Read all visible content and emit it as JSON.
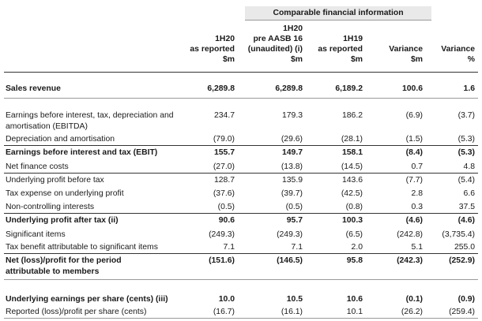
{
  "group_header": "Comparable financial information",
  "columns": [
    {
      "lines": [
        "1H20",
        "as reported",
        "$m"
      ]
    },
    {
      "lines": [
        "1H20",
        "pre AASB 16",
        "(unaudited) (i)",
        "$m"
      ]
    },
    {
      "lines": [
        "1H19",
        "as reported",
        "$m"
      ]
    },
    {
      "lines": [
        "Variance",
        "$m"
      ]
    },
    {
      "lines": [
        "Variance",
        "%"
      ]
    }
  ],
  "rows": [
    {
      "label": "Sales revenue",
      "values": [
        "6,289.8",
        "6,289.8",
        "6,189.2",
        "100.6",
        "1.6"
      ]
    },
    {
      "label": "Earnings before interest, tax, depreciation and",
      "label2": "amortisation (EBITDA)",
      "values": [
        "234.7",
        "179.3",
        "186.2",
        "(6.9)",
        "(3.7)"
      ]
    },
    {
      "label": "Depreciation and amortisation",
      "values": [
        "(79.0)",
        "(29.6)",
        "(28.1)",
        "(1.5)",
        "(5.3)"
      ]
    },
    {
      "label": "Earnings before interest and tax (EBIT)",
      "values": [
        "155.7",
        "149.7",
        "158.1",
        "(8.4)",
        "(5.3)"
      ]
    },
    {
      "label": "Net finance costs",
      "values": [
        "(27.0)",
        "(13.8)",
        "(14.5)",
        "0.7",
        "4.8"
      ]
    },
    {
      "label": "Underlying profit before tax",
      "values": [
        "128.7",
        "135.9",
        "143.6",
        "(7.7)",
        "(5.4)"
      ]
    },
    {
      "label": "Tax expense on underlying profit",
      "values": [
        "(37.6)",
        "(39.7)",
        "(42.5)",
        "2.8",
        "6.6"
      ]
    },
    {
      "label": "Non-controlling interests",
      "values": [
        "(0.5)",
        "(0.5)",
        "(0.8)",
        "0.3",
        "37.5"
      ]
    },
    {
      "label": "Underlying profit after tax (ii)",
      "values": [
        "90.6",
        "95.7",
        "100.3",
        "(4.6)",
        "(4.6)"
      ]
    },
    {
      "label": "Significant items",
      "values": [
        "(249.3)",
        "(249.3)",
        "(6.5)",
        "(242.8)",
        "(3,735.4)"
      ]
    },
    {
      "label": "Tax benefit attributable to significant items",
      "values": [
        "7.1",
        "7.1",
        "2.0",
        "5.1",
        "255.0"
      ]
    },
    {
      "label": "Net (loss)/profit for the period",
      "label2": "attributable to members",
      "values": [
        "(151.6)",
        "(146.5)",
        "95.8",
        "(242.3)",
        "(252.9)"
      ]
    },
    {
      "label": "Underlying earnings per share (cents) (iii)",
      "values": [
        "10.0",
        "10.5",
        "10.6",
        "(0.1)",
        "(0.9)"
      ]
    },
    {
      "label": "Reported (loss)/profit per share (cents)",
      "values": [
        "(16.7)",
        "(16.1)",
        "10.1",
        "(26.2)",
        "(259.4)"
      ]
    }
  ]
}
